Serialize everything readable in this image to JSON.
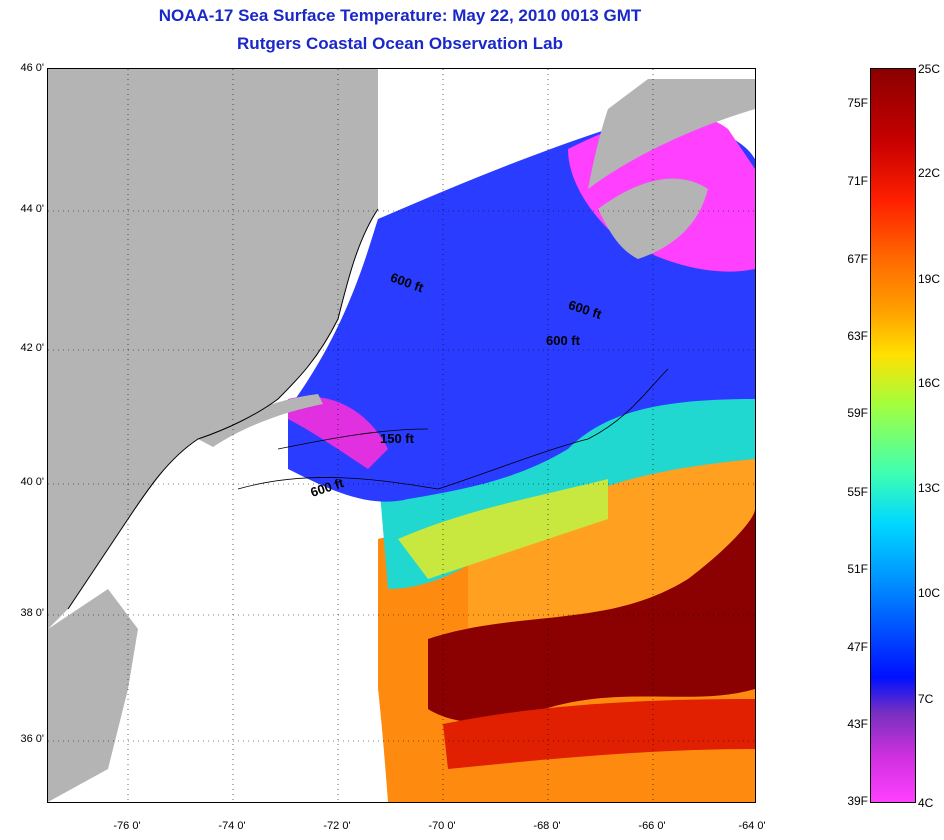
{
  "title": {
    "line1": "NOAA-17 Sea Surface Temperature:  May 22, 2010 0013 GMT",
    "line2": "Rutgers Coastal Ocean Observation Lab"
  },
  "axes": {
    "lat_labels": [
      "46 0'",
      "44 0'",
      "42 0'",
      "40 0'",
      "38 0'",
      "36 0'"
    ],
    "lon_labels": [
      "-76 0'",
      "-74 0'",
      "-72 0'",
      "-70 0'",
      "-68 0'",
      "-66 0'",
      "-64 0'"
    ]
  },
  "contour_labels": [
    "600 ft",
    "600 ft",
    "600 ft",
    "150 ft",
    "600 ft"
  ],
  "colorbar": {
    "f_labels": [
      "75F",
      "71F",
      "67F",
      "63F",
      "59F",
      "55F",
      "51F",
      "47F",
      "43F",
      "39F"
    ],
    "c_labels": [
      "25C",
      "22C",
      "19C",
      "16C",
      "13C",
      "10C",
      "7C",
      "4C"
    ]
  },
  "colors": {
    "title": "#1a28c8",
    "land": "#b4b4b4",
    "cloud": "#ffffff",
    "cold": "#2040ff",
    "coldest": "#ff40ff",
    "gulf_stream": "#8b0000"
  }
}
